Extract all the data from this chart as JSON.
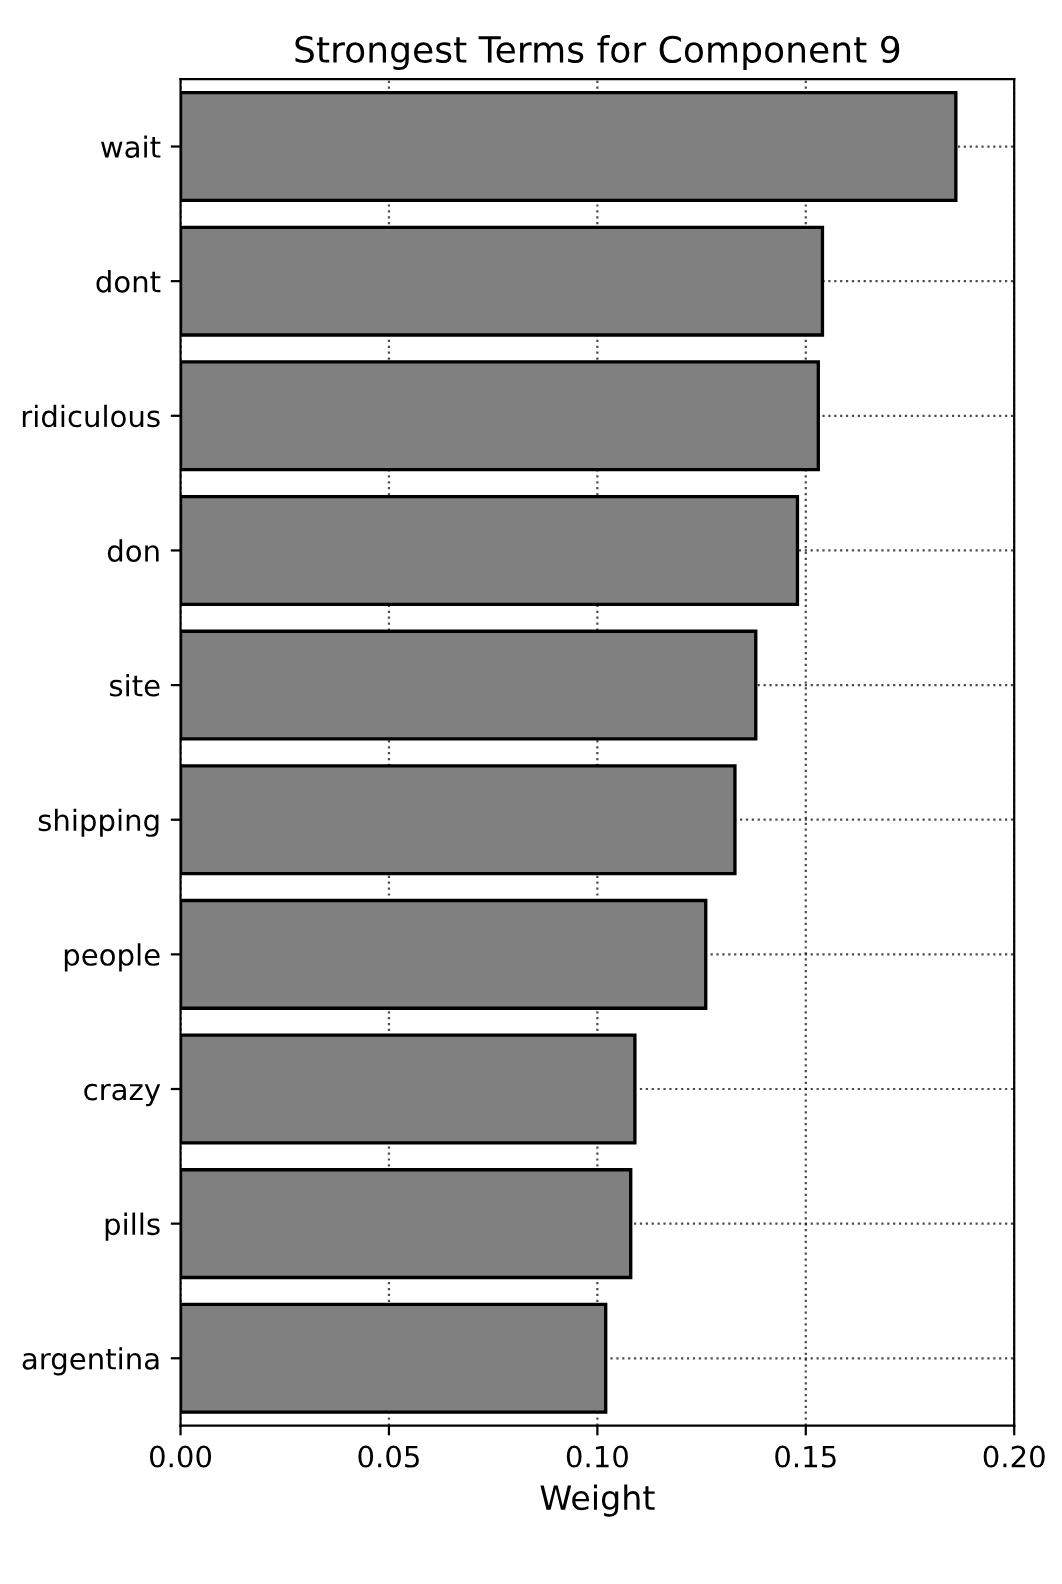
{
  "chart_data": {
    "type": "bar",
    "orientation": "horizontal",
    "title": "Strongest Terms for Component 9",
    "xlabel": "Weight",
    "categories": [
      "wait",
      "dont",
      "ridiculous",
      "don",
      "site",
      "shipping",
      "people",
      "crazy",
      "pills",
      "argentina"
    ],
    "values": [
      0.186,
      0.154,
      0.153,
      0.148,
      0.138,
      0.133,
      0.126,
      0.109,
      0.108,
      0.102
    ],
    "color": "#808080",
    "xlim": [
      0.0,
      0.2
    ],
    "xticks": [
      {
        "value": 0,
        "label": "0.00"
      },
      {
        "value": 0.05,
        "label": "0.05"
      },
      {
        "value": 0.1,
        "label": "0.10"
      },
      {
        "value": 0.15,
        "label": "0.15"
      },
      {
        "value": 0.2,
        "label": "0.20"
      }
    ],
    "grid": true,
    "line_style": "dotted"
  }
}
